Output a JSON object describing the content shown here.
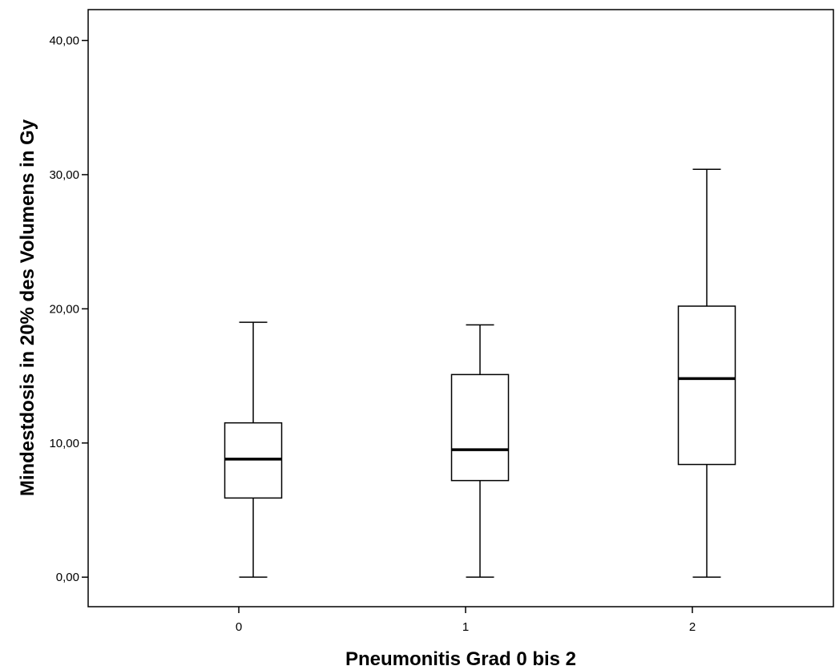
{
  "chart_data": {
    "type": "boxplot",
    "title": "",
    "xlabel": "Pneumonitis Grad 0 bis 2",
    "ylabel": "Mindestdosis in 20% des Volumens in Gy",
    "ylim": [
      -2.2,
      42.3
    ],
    "yticks": [
      0,
      10,
      20,
      30,
      40
    ],
    "ytick_labels": [
      "0,00",
      "10,00",
      "20,00",
      "30,00",
      "40,00"
    ],
    "categories": [
      "0",
      "1",
      "2"
    ],
    "boxes": [
      {
        "category": "0",
        "min": 0.0,
        "q1": 5.9,
        "median": 8.8,
        "q3": 11.5,
        "max": 19.0
      },
      {
        "category": "1",
        "min": 0.0,
        "q1": 7.2,
        "median": 9.5,
        "q3": 15.1,
        "max": 18.8
      },
      {
        "category": "2",
        "min": 0.0,
        "q1": 8.4,
        "median": 14.8,
        "q3": 20.2,
        "max": 30.4
      }
    ],
    "grid": false,
    "legend": "none",
    "colors": {
      "box_fill": "#ffffff",
      "stroke": "#000000"
    }
  }
}
